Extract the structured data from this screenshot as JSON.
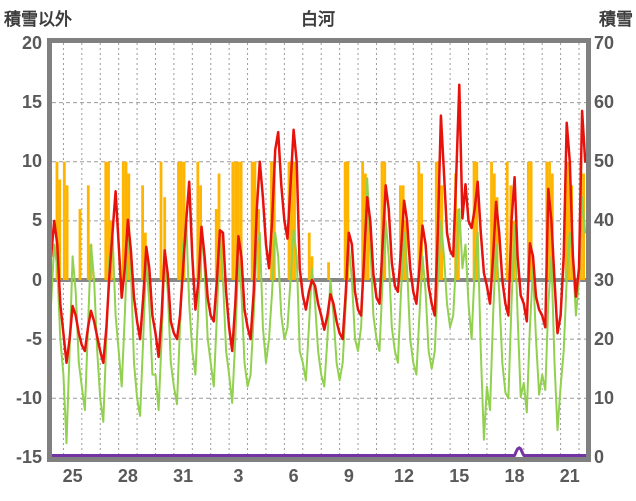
{
  "header": {
    "left_axis_title": "積雪以外",
    "station_title": "白河",
    "right_axis_title": "積雪"
  },
  "chart_data": {
    "type": "line",
    "title": "白河",
    "grid": true,
    "zero_line_value": 0,
    "left_axis": {
      "label": "積雪以外",
      "min": -15,
      "max": 20,
      "ticks": [
        20,
        15,
        10,
        5,
        0,
        -5,
        -10,
        -15
      ]
    },
    "right_axis": {
      "label": "積雪",
      "min": 0,
      "max": 70,
      "ticks": [
        70,
        60,
        50,
        40,
        30,
        20,
        10,
        0
      ]
    },
    "x_axis": {
      "tick_labels": [
        "25",
        "28",
        "31",
        "3",
        "6",
        "9",
        "12",
        "15",
        "18",
        "21"
      ],
      "tick_interval_days": 3,
      "gridline_interval_days": 1,
      "days_shown": 29
    },
    "colors": {
      "orange_bars": "#FFB400",
      "red_line": "#E8120C",
      "green_line": "#92D050",
      "purple_line": "#7434A4",
      "zero_line": "#878787",
      "gridline": "#9A9A9A",
      "frame": "#808080",
      "tick_text": "#595959"
    },
    "series": [
      {
        "name": "orange-bars",
        "type": "bar",
        "axis": "left",
        "color": "#FFB400",
        "bar_width_days": 0.152,
        "points": [
          [
            -0.35,
            10
          ],
          [
            -0.2,
            8.5
          ],
          [
            0.05,
            10
          ],
          [
            0.2,
            8
          ],
          [
            0.9,
            6
          ],
          [
            1.35,
            8
          ],
          [
            1.5,
            3
          ],
          [
            2.3,
            10
          ],
          [
            2.45,
            10
          ],
          [
            2.6,
            5
          ],
          [
            3.25,
            10
          ],
          [
            3.4,
            10
          ],
          [
            3.55,
            9
          ],
          [
            4.3,
            8
          ],
          [
            4.45,
            4
          ],
          [
            5.3,
            10
          ],
          [
            5.5,
            7
          ],
          [
            6.25,
            10
          ],
          [
            6.4,
            10
          ],
          [
            6.55,
            10
          ],
          [
            7.3,
            10
          ],
          [
            7.45,
            8
          ],
          [
            8.3,
            6
          ],
          [
            8.45,
            9
          ],
          [
            8.6,
            4
          ],
          [
            9.2,
            10
          ],
          [
            9.35,
            10
          ],
          [
            9.5,
            10
          ],
          [
            9.65,
            10
          ],
          [
            10.25,
            10
          ],
          [
            10.4,
            10
          ],
          [
            10.6,
            6
          ],
          [
            11.3,
            10
          ],
          [
            11.45,
            10
          ],
          [
            12.25,
            10
          ],
          [
            12.4,
            10
          ],
          [
            12.55,
            10
          ],
          [
            13.35,
            4
          ],
          [
            13.5,
            2
          ],
          [
            14.4,
            1.5
          ],
          [
            15.3,
            10
          ],
          [
            15.45,
            10
          ],
          [
            16.25,
            10
          ],
          [
            16.4,
            9
          ],
          [
            16.55,
            7
          ],
          [
            17.3,
            10
          ],
          [
            17.45,
            10
          ],
          [
            18.3,
            8
          ],
          [
            18.45,
            8
          ],
          [
            18.6,
            5
          ],
          [
            19.3,
            10
          ],
          [
            19.45,
            9
          ],
          [
            20.25,
            10
          ],
          [
            20.4,
            10
          ],
          [
            20.55,
            8
          ],
          [
            21.3,
            9
          ],
          [
            21.45,
            6
          ],
          [
            22.3,
            10
          ],
          [
            22.45,
            10
          ],
          [
            23.25,
            10
          ],
          [
            23.4,
            9
          ],
          [
            23.55,
            7
          ],
          [
            24.1,
            10
          ],
          [
            24.3,
            8
          ],
          [
            24.45,
            5
          ],
          [
            25.25,
            10
          ],
          [
            25.4,
            10
          ],
          [
            26.25,
            10
          ],
          [
            26.4,
            10
          ],
          [
            26.55,
            9
          ],
          [
            27.3,
            10
          ],
          [
            27.45,
            10
          ],
          [
            27.6,
            8
          ],
          [
            28.1,
            10
          ],
          [
            28.25,
            9
          ]
        ]
      },
      {
        "name": "green-line",
        "type": "line",
        "axis": "left",
        "color": "#92D050",
        "start": -0.6667,
        "step": 0.16667,
        "values": [
          -2.0,
          3.0,
          1.0,
          -5.0,
          -8.0,
          -13.8,
          -6.0,
          2.0,
          -1.0,
          -7.0,
          -9.0,
          -11.0,
          -4.0,
          3.0,
          0.0,
          -6.0,
          -10.0,
          -12.0,
          -5.0,
          2.0,
          4.0,
          -3.0,
          -6.0,
          -9.0,
          -3.0,
          4.0,
          1.0,
          -7.0,
          -10.0,
          -11.5,
          -5.0,
          2.0,
          -2.0,
          -8.0,
          -8.0,
          -11.0,
          -5.0,
          2.5,
          -1.0,
          -7.0,
          -9.0,
          -10.5,
          -4.0,
          3.0,
          5.0,
          -2.0,
          -6.0,
          -8.0,
          -2.0,
          4.0,
          1.0,
          -5.0,
          -7.0,
          -9.0,
          -3.0,
          3.5,
          0.0,
          -6.0,
          -8.0,
          -10.4,
          -5.0,
          2.0,
          -1.0,
          -7.0,
          -9.0,
          -8.0,
          -3.0,
          3.0,
          4.0,
          -4.0,
          -7.0,
          -5.0,
          -1.0,
          4.0,
          2.0,
          -3.0,
          -5.0,
          -4.0,
          0.0,
          4.2,
          2.0,
          -6.0,
          -7.0,
          -8.5,
          -4.0,
          1.0,
          -2.0,
          -6.0,
          -8.0,
          -9.0,
          -5.0,
          0.0,
          -3.0,
          -7.0,
          -8.5,
          -7.0,
          -2.0,
          3.0,
          0.0,
          -5.0,
          -6.0,
          -4.0,
          2.0,
          8.6,
          3.0,
          -3.0,
          -5.0,
          -6.0,
          0.0,
          5.0,
          2.0,
          -4.0,
          -6.0,
          -7.0,
          -1.0,
          4.0,
          1.0,
          -5.0,
          -7.0,
          -8.0,
          -3.0,
          2.0,
          -1.0,
          -6.0,
          -7.5,
          -6.0,
          0.0,
          5.0,
          2.0,
          -2.0,
          -4.0,
          -3.0,
          2.0,
          6.0,
          1.0,
          3.0,
          -2.0,
          -5.0,
          1.0,
          4.0,
          -6.0,
          -13.5,
          -9.0,
          -11.0,
          -3.0,
          3.0,
          -1.0,
          -7.0,
          -9.5,
          -10.0,
          -2.0,
          4.6,
          -3.0,
          -9.9,
          -8.7,
          -11.2,
          -4.0,
          1.0,
          -5.0,
          -9.7,
          -8.0,
          -9.3,
          -2.0,
          2.0,
          -7.0,
          -12.7,
          -9.0,
          -6.0,
          0.0,
          4.0,
          1.8,
          -3.0,
          0.0,
          7.0,
          4.0
        ]
      },
      {
        "name": "red-line",
        "type": "line",
        "axis": "left",
        "color": "#E8120C",
        "start": -0.6667,
        "step": 0.16667,
        "values": [
          2.0,
          5.0,
          3.0,
          -2.0,
          -4.5,
          -7.0,
          -5.0,
          -2.2,
          -3.0,
          -4.5,
          -5.5,
          -6.0,
          -4.0,
          -2.6,
          -3.5,
          -4.8,
          -6.0,
          -7.0,
          -4.0,
          0.5,
          4.0,
          7.5,
          3.0,
          -1.5,
          1.0,
          5.1,
          2.5,
          -1.5,
          -3.5,
          -5.0,
          -1.5,
          2.8,
          1.0,
          -3.0,
          -4.5,
          -6.5,
          -3.0,
          2.5,
          0.5,
          -3.5,
          -4.5,
          -5.0,
          -3.0,
          1.0,
          5.0,
          8.3,
          2.0,
          -2.5,
          0.0,
          4.5,
          2.0,
          -1.5,
          -3.0,
          -3.5,
          0.0,
          4.2,
          4.0,
          -1.0,
          -4.0,
          -6.0,
          -2.0,
          3.7,
          2.0,
          -2.5,
          -4.0,
          -5.0,
          -1.0,
          6.0,
          10.0,
          7.0,
          3.0,
          1.0,
          5.0,
          11.0,
          12.5,
          8.0,
          5.0,
          3.5,
          8.0,
          12.7,
          10.0,
          1.0,
          -1.3,
          -2.5,
          -1.0,
          0.0,
          -0.5,
          -2.0,
          -3.0,
          -4.2,
          -3.0,
          -1.2,
          -2.0,
          -3.5,
          -4.5,
          -5.0,
          -1.0,
          4.0,
          3.0,
          -1.0,
          -2.5,
          -3.0,
          2.0,
          7.0,
          5.0,
          0.5,
          -1.5,
          -2.0,
          3.0,
          8.0,
          6.0,
          1.5,
          -0.5,
          -1.0,
          2.5,
          6.7,
          5.0,
          1.0,
          -1.0,
          -2.0,
          1.0,
          4.6,
          3.0,
          -0.5,
          -2.0,
          -3.0,
          4.0,
          13.9,
          9.0,
          4.0,
          2.5,
          2.0,
          9.0,
          16.5,
          5.2,
          8.1,
          5.0,
          4.4,
          6.0,
          8.3,
          4.0,
          0.6,
          -0.5,
          -2.0,
          2.0,
          6.6,
          4.0,
          0.0,
          -2.0,
          -3.0,
          5.0,
          8.7,
          2.0,
          -1.3,
          -2.0,
          -3.5,
          3.1,
          2.0,
          -1.4,
          -2.5,
          -3.0,
          -4.0,
          7.7,
          5.0,
          0.0,
          -4.5,
          -3.0,
          2.0,
          13.3,
          10.0,
          2.0,
          -1.4,
          1.0,
          14.3,
          10.0
        ]
      },
      {
        "name": "purple-line",
        "type": "line",
        "axis": "right",
        "color": "#7434A4",
        "points": [
          [
            -0.62,
            0
          ],
          [
            24.5,
            0
          ],
          [
            24.58,
            0.6
          ],
          [
            24.66,
            1.1
          ],
          [
            24.75,
            1.3
          ],
          [
            24.84,
            1.1
          ],
          [
            24.92,
            0.5
          ],
          [
            25.0,
            0
          ],
          [
            28.38,
            0
          ]
        ]
      }
    ]
  }
}
